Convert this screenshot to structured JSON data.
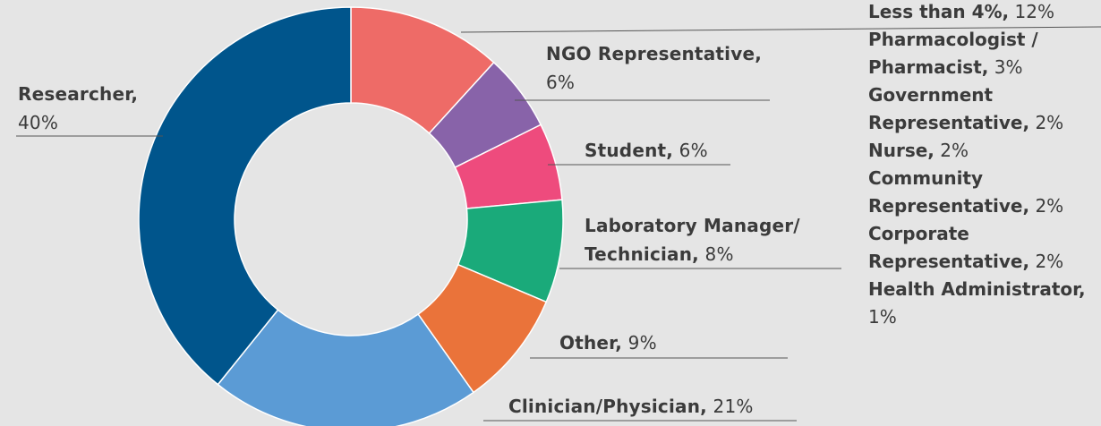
{
  "chart_data": {
    "type": "donut",
    "categories": [
      "Less than 4%,",
      "NGO Representative,",
      "Student,",
      "Laboratory Manager/ Technician,",
      "Other,",
      "Clinician/Physician,",
      "Researcher,"
    ],
    "values": [
      12,
      6,
      6,
      8,
      9,
      21,
      40
    ],
    "value_labels": [
      "12%",
      "6%",
      "6%",
      "8%",
      "9%",
      "21%",
      "40%"
    ],
    "colors": [
      "#ee6b67",
      "#8863a9",
      "#ee4b7d",
      "#1aaa7a",
      "#ea733a",
      "#5b9bd5",
      "#00558c"
    ],
    "breakdown": {
      "labels": [
        "Pharmacologist / Pharmacist,",
        "Government Representative,",
        "Nurse,",
        "Community Representative,",
        "Corporate Representative,",
        "Health Administrator,"
      ],
      "values": [
        3,
        2,
        2,
        2,
        2,
        1
      ],
      "value_labels": [
        "3%",
        "2%",
        "2%",
        "2%",
        "2%",
        "1%"
      ]
    }
  }
}
